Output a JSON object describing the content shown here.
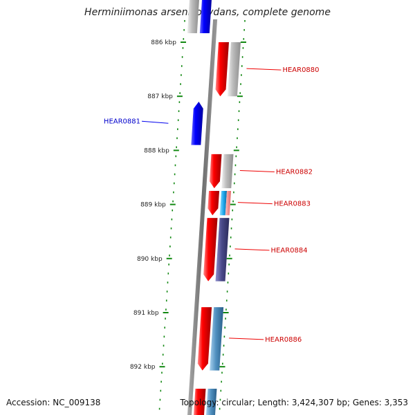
{
  "title": "Herminiimonas arsenicoxydans, complete genome",
  "footer": {
    "accession": "Accession: NC_009138",
    "summary": "Topology: circular; Length: 3,424,307 bp; Genes: 3,353"
  },
  "ruler": {
    "unit": "kbp",
    "ticks": [
      {
        "label": "886 kbp",
        "kbp": 886
      },
      {
        "label": "887 kbp",
        "kbp": 887
      },
      {
        "label": "888 kbp",
        "kbp": 888
      },
      {
        "label": "889 kbp",
        "kbp": 889
      },
      {
        "label": "890 kbp",
        "kbp": 890
      },
      {
        "label": "891 kbp",
        "kbp": 891
      },
      {
        "label": "892 kbp",
        "kbp": 892
      }
    ]
  },
  "genes": [
    {
      "label": "HEAR0880",
      "strand": "reverse",
      "start_kbp": 886.0,
      "end_kbp": 887.0,
      "color": "#ee0000",
      "shade_color": "#bbbbbb"
    },
    {
      "label": "HEAR0881",
      "strand": "forward",
      "start_kbp": 887.1,
      "end_kbp": 887.9,
      "color": "#0000ee",
      "shade_color": ""
    },
    {
      "label": "HEAR0882",
      "strand": "reverse",
      "start_kbp": 888.07,
      "end_kbp": 888.7,
      "color": "#ee0000",
      "shade_color": "#bbbbbb"
    },
    {
      "label": "HEAR0883",
      "strand": "reverse",
      "start_kbp": 888.75,
      "end_kbp": 889.2,
      "color": "#ee0000",
      "shade_color": "#22aaee"
    },
    {
      "label": "HEAR0884",
      "strand": "reverse",
      "start_kbp": 889.25,
      "end_kbp": 890.42,
      "color": "#ee0000",
      "shade_color": "#4a4a8a"
    },
    {
      "label": "HEAR0886",
      "strand": "reverse",
      "start_kbp": 890.9,
      "end_kbp": 892.07,
      "color": "#ee0000",
      "shade_color": "#5090c0"
    }
  ],
  "colors": {
    "forward_label": "#0000cc",
    "reverse_label": "#cc0000",
    "ruler": "#118811",
    "backbone": "#777777"
  }
}
